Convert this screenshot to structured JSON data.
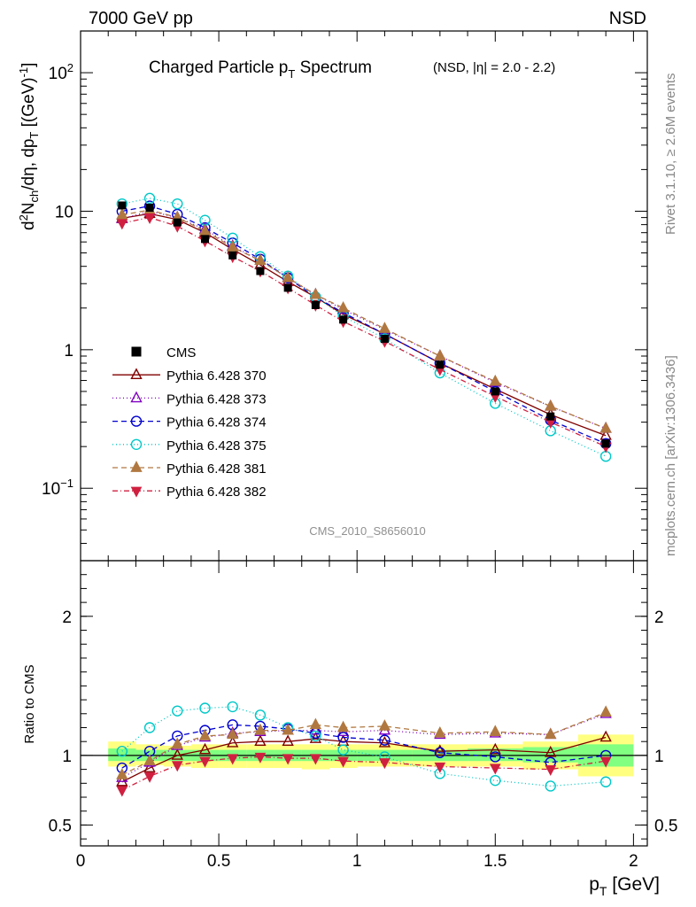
{
  "header": {
    "left": "7000 GeV pp",
    "right": "NSD"
  },
  "side": {
    "top": "Rivet 3.1.10, ≥ 2.6M events",
    "bottom": "mcplots.cern.ch [arXiv:1306.3436]"
  },
  "analysis_tag": "CMS_2010_S8656010",
  "title": {
    "main": "Charged Particle p",
    "main_sub": "T",
    "main_tail": " Spectrum",
    "small": "(NSD, |η| = 2.0 - 2.2)"
  },
  "ylabel": {
    "p1": "d",
    "p2": "2",
    "p3": "N",
    "p4": "ch",
    "p5": "/dη, dp",
    "p6": "T",
    "p7": " [(GeV)",
    "p8": "-1",
    "p9": "]"
  },
  "ratio_ylabel": "Ratio to CMS",
  "xlabel": {
    "p1": "p",
    "p2": "T",
    "p3": " [GeV]"
  },
  "legend_entries": [
    "CMS",
    "Pythia 6.428 370",
    "Pythia 6.428 373",
    "Pythia 6.428 374",
    "Pythia 6.428 375",
    "Pythia 6.428 381",
    "Pythia 6.428 382"
  ],
  "chart_data": [
    {
      "type": "line",
      "panel": "main",
      "yscale": "log",
      "xlim": [
        0,
        2.05
      ],
      "ylim": [
        0.03,
        200
      ],
      "x": [
        0.15,
        0.25,
        0.35,
        0.45,
        0.55,
        0.65,
        0.75,
        0.85,
        0.95,
        1.1,
        1.3,
        1.5,
        1.7,
        1.9
      ],
      "yticks": [
        {
          "v": 100,
          "base": "10",
          "exp": "2"
        },
        {
          "v": 10,
          "base": "10",
          "exp": ""
        },
        {
          "v": 1,
          "base": "1",
          "exp": ""
        },
        {
          "v": 0.1,
          "base": "10",
          "exp": "−1"
        }
      ],
      "series": [
        {
          "name": "CMS",
          "color": "#000000",
          "marker": "square",
          "dash": "",
          "values": [
            11.0,
            10.6,
            8.3,
            6.3,
            4.8,
            3.7,
            2.8,
            2.1,
            1.65,
            1.2,
            0.78,
            0.5,
            0.33,
            0.21
          ]
        },
        {
          "name": "Pythia 6.428 370",
          "color": "#800000",
          "marker": "triangle-open",
          "dash": "",
          "values": [
            8.9,
            9.6,
            8.7,
            7.0,
            5.3,
            4.1,
            3.1,
            2.4,
            1.8,
            1.3,
            0.8,
            0.52,
            0.34,
            0.24
          ]
        },
        {
          "name": "Pythia 6.428 373",
          "color": "#8000c0",
          "marker": "triangle-open",
          "dash": "1,3",
          "values": [
            8.8,
            10.0,
            9.0,
            7.4,
            5.6,
            4.4,
            3.3,
            2.5,
            1.95,
            1.4,
            0.9,
            0.58,
            0.39,
            0.27
          ]
        },
        {
          "name": "Pythia 6.428 374",
          "color": "#0000d0",
          "marker": "circle-open",
          "dash": "6,4",
          "values": [
            10.0,
            10.9,
            9.5,
            7.6,
            5.9,
            4.5,
            3.3,
            2.4,
            1.85,
            1.3,
            0.8,
            0.5,
            0.31,
            0.21
          ]
        },
        {
          "name": "Pythia 6.428 375",
          "color": "#00c8c8",
          "marker": "circle-open",
          "dash": "1,3",
          "values": [
            11.3,
            12.4,
            11.3,
            8.6,
            6.4,
            4.7,
            3.4,
            2.4,
            1.75,
            1.2,
            0.68,
            0.41,
            0.26,
            0.17
          ]
        },
        {
          "name": "Pythia 6.428 381",
          "color": "#b07840",
          "marker": "triangle-filled",
          "dash": "6,4",
          "values": [
            9.4,
            10.2,
            9.0,
            7.2,
            5.5,
            4.4,
            3.3,
            2.5,
            2.0,
            1.42,
            0.9,
            0.59,
            0.39,
            0.27
          ]
        },
        {
          "name": "Pythia 6.428 382",
          "color": "#d02040",
          "marker": "triangle-down-filled",
          "dash": "6,3,1,3",
          "values": [
            8.2,
            9.0,
            7.8,
            6.1,
            4.7,
            3.7,
            2.8,
            2.1,
            1.6,
            1.15,
            0.72,
            0.46,
            0.3,
            0.2
          ]
        }
      ]
    },
    {
      "type": "line",
      "panel": "ratio",
      "xlim": [
        0,
        2.05
      ],
      "ylim": [
        0.35,
        2.4
      ],
      "x": [
        0.15,
        0.25,
        0.35,
        0.45,
        0.55,
        0.65,
        0.75,
        0.85,
        0.95,
        1.1,
        1.3,
        1.5,
        1.7,
        1.9
      ],
      "xticks": [
        {
          "v": 0,
          "label": "0"
        },
        {
          "v": 0.5,
          "label": "0.5"
        },
        {
          "v": 1,
          "label": "1"
        },
        {
          "v": 1.5,
          "label": "1.5"
        },
        {
          "v": 2,
          "label": "2"
        }
      ],
      "yticks": [
        {
          "v": 0.5,
          "label": "0.5"
        },
        {
          "v": 1,
          "label": "1"
        },
        {
          "v": 2,
          "label": "2"
        }
      ],
      "bands": {
        "edges": [
          0.1,
          0.2,
          0.3,
          0.4,
          0.5,
          0.6,
          0.7,
          0.8,
          0.9,
          1.0,
          1.2,
          1.4,
          1.6,
          1.8,
          2.0
        ],
        "outer": [
          [
            0.92,
            1.1
          ],
          [
            0.93,
            1.08
          ],
          [
            0.92,
            1.07
          ],
          [
            0.91,
            1.08
          ],
          [
            0.91,
            1.08
          ],
          [
            0.91,
            1.08
          ],
          [
            0.91,
            1.08
          ],
          [
            0.9,
            1.08
          ],
          [
            0.91,
            1.08
          ],
          [
            0.92,
            1.08
          ],
          [
            0.92,
            1.08
          ],
          [
            0.92,
            1.08
          ],
          [
            0.9,
            1.1
          ],
          [
            0.85,
            1.15
          ]
        ],
        "inner": [
          [
            0.96,
            1.05
          ],
          [
            0.96,
            1.04
          ],
          [
            0.96,
            1.04
          ],
          [
            0.96,
            1.04
          ],
          [
            0.96,
            1.04
          ],
          [
            0.96,
            1.04
          ],
          [
            0.96,
            1.04
          ],
          [
            0.96,
            1.04
          ],
          [
            0.96,
            1.04
          ],
          [
            0.96,
            1.04
          ],
          [
            0.96,
            1.04
          ],
          [
            0.96,
            1.05
          ],
          [
            0.95,
            1.06
          ],
          [
            0.92,
            1.08
          ]
        ]
      },
      "series": [
        {
          "name": "Pythia 6.428 370",
          "values": [
            0.81,
            0.91,
            1.0,
            1.04,
            1.09,
            1.1,
            1.1,
            1.12,
            1.1,
            1.09,
            1.03,
            1.04,
            1.02,
            1.13
          ]
        },
        {
          "name": "Pythia 6.428 373",
          "values": [
            0.84,
            0.95,
            1.07,
            1.13,
            1.16,
            1.17,
            1.18,
            1.18,
            1.17,
            1.18,
            1.15,
            1.16,
            1.15,
            1.3
          ]
        },
        {
          "name": "Pythia 6.428 374",
          "values": [
            0.91,
            1.03,
            1.14,
            1.18,
            1.22,
            1.21,
            1.19,
            1.16,
            1.13,
            1.11,
            1.02,
            0.99,
            0.95,
            1.0
          ]
        },
        {
          "name": "Pythia 6.428 375",
          "values": [
            1.03,
            1.2,
            1.32,
            1.34,
            1.35,
            1.29,
            1.2,
            1.14,
            1.04,
            0.99,
            0.87,
            0.82,
            0.78,
            0.81
          ]
        },
        {
          "name": "Pythia 6.428 381",
          "values": [
            0.86,
            0.96,
            1.08,
            1.14,
            1.15,
            1.18,
            1.18,
            1.22,
            1.2,
            1.21,
            1.16,
            1.17,
            1.15,
            1.31
          ]
        },
        {
          "name": "Pythia 6.428 382",
          "values": [
            0.75,
            0.85,
            0.93,
            0.96,
            0.98,
            0.99,
            0.98,
            0.98,
            0.96,
            0.95,
            0.92,
            0.91,
            0.9,
            0.96
          ]
        }
      ]
    }
  ]
}
